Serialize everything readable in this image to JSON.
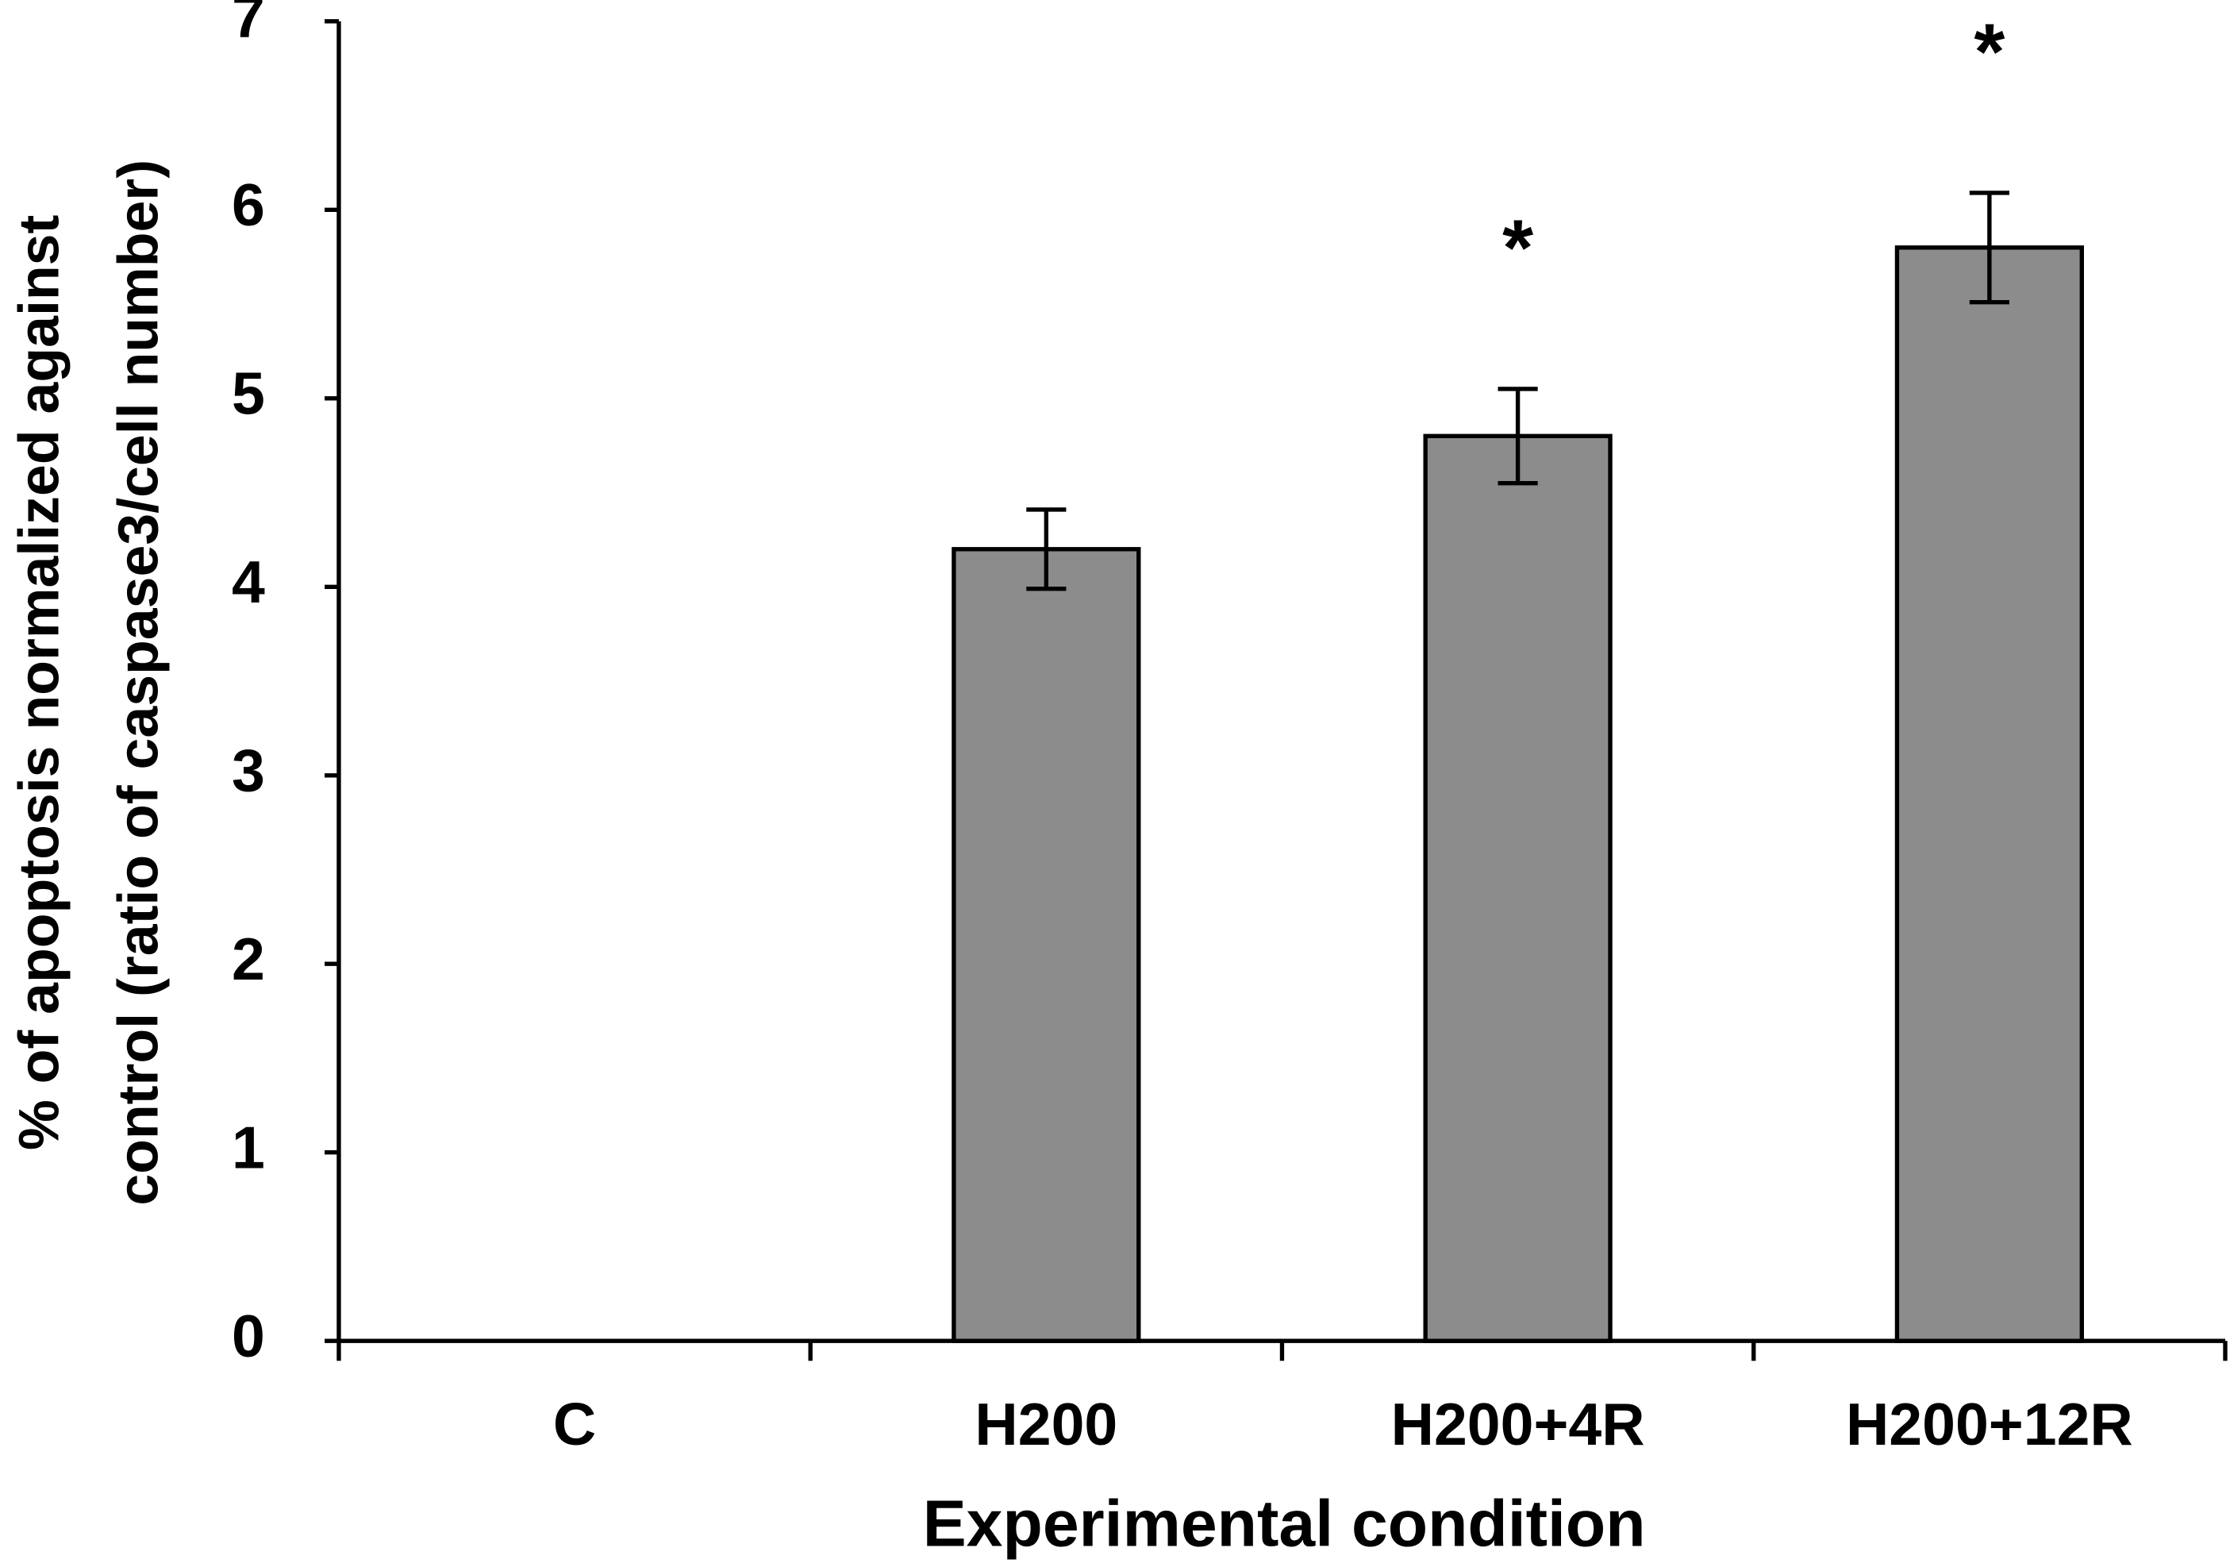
{
  "chart_data": {
    "type": "bar",
    "categories": [
      "C",
      "H200",
      "H200+4R",
      "H200+12R"
    ],
    "values": [
      0,
      4.2,
      4.8,
      5.8
    ],
    "errors": [
      null,
      0.21,
      0.25,
      0.29
    ],
    "significance": [
      null,
      null,
      "*",
      "*"
    ],
    "color": "#8c8c8c",
    "ylim": [
      0,
      7
    ],
    "yticks": [
      0,
      1,
      2,
      3,
      4,
      5,
      6,
      7
    ],
    "xlabel": "Experimental condition",
    "ylabel": [
      "% of apoptosis normalized against",
      "control (ratio of caspase3/cell number)"
    ],
    "grid": false
  }
}
